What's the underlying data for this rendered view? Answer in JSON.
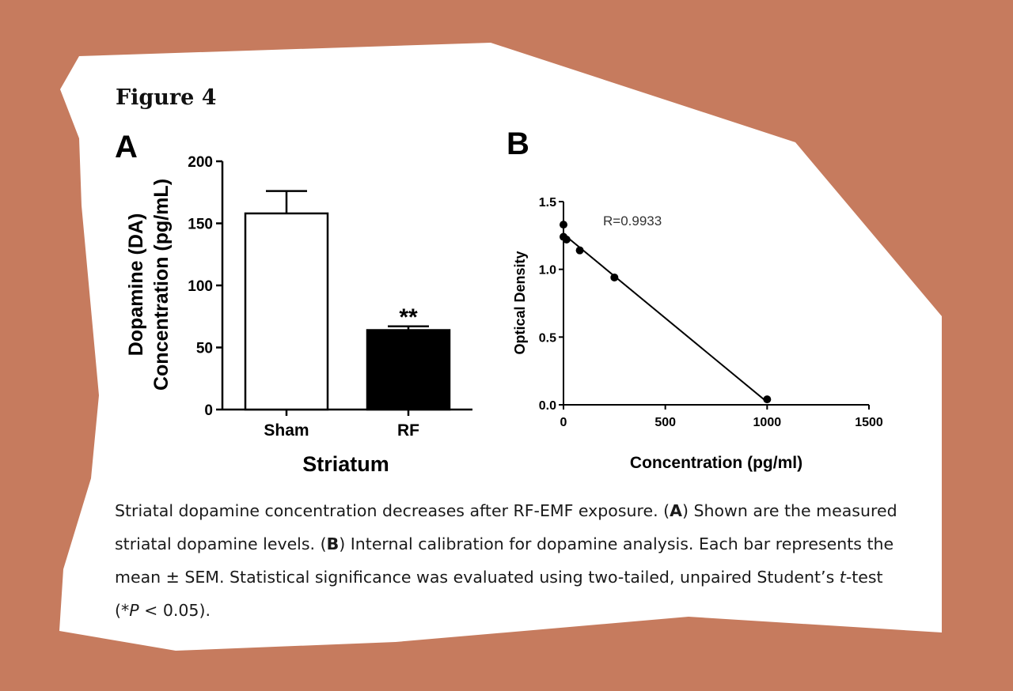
{
  "figure_title": "Figure 4",
  "chart_data": [
    {
      "panel": "A",
      "type": "bar",
      "xlabel": "Striatum",
      "ylabel_lines": [
        "Dopamine (DA)",
        "Concentration (pg/mL)"
      ],
      "categories": [
        "Sham",
        "RF"
      ],
      "values": [
        158,
        64
      ],
      "errors": [
        18,
        3
      ],
      "bar_colors": [
        "#ffffff",
        "#000000"
      ],
      "annotations": [
        "",
        "**"
      ],
      "ylim": [
        0,
        200
      ],
      "yticks": [
        0,
        50,
        100,
        150,
        200
      ],
      "ytick_labels": [
        "0",
        "50",
        "100",
        "150",
        "200"
      ]
    },
    {
      "panel": "B",
      "type": "scatter",
      "xlabel": "Concentration (pg/ml)",
      "ylabel": "Optical Density",
      "annotation": "R=0.9933",
      "points": [
        {
          "x": 0,
          "y": 1.33
        },
        {
          "x": 0,
          "y": 1.24
        },
        {
          "x": 15,
          "y": 1.22
        },
        {
          "x": 80,
          "y": 1.14
        },
        {
          "x": 250,
          "y": 0.94
        },
        {
          "x": 1000,
          "y": 0.04
        }
      ],
      "fit_line": [
        {
          "x": 0,
          "y": 1.26
        },
        {
          "x": 1000,
          "y": 0.02
        }
      ],
      "xlim": [
        0,
        1500
      ],
      "ylim": [
        0,
        1.5
      ],
      "xticks": [
        0,
        500,
        1000,
        1500
      ],
      "xtick_labels": [
        "0",
        "500",
        "1000",
        "1500"
      ],
      "yticks": [
        0,
        0.5,
        1.0,
        1.5
      ],
      "ytick_labels": [
        "0.0",
        "0.5",
        "1.0",
        "1.5"
      ]
    }
  ],
  "caption": {
    "p1": "Striatal dopamine concentration decreases after RF-EMF exposure. (",
    "a": "A",
    "p2": ") Shown are the measured striatal dopamine levels. (",
    "b": "B",
    "p3": ") Internal calibration for dopamine analysis. Each bar represents the mean ± SEM. Statistical significance was evaluated using two-tailed, unpaired Student’s ",
    "t": "t",
    "p4": "-test (*",
    "P": "P",
    "p5": " < 0.05)."
  }
}
